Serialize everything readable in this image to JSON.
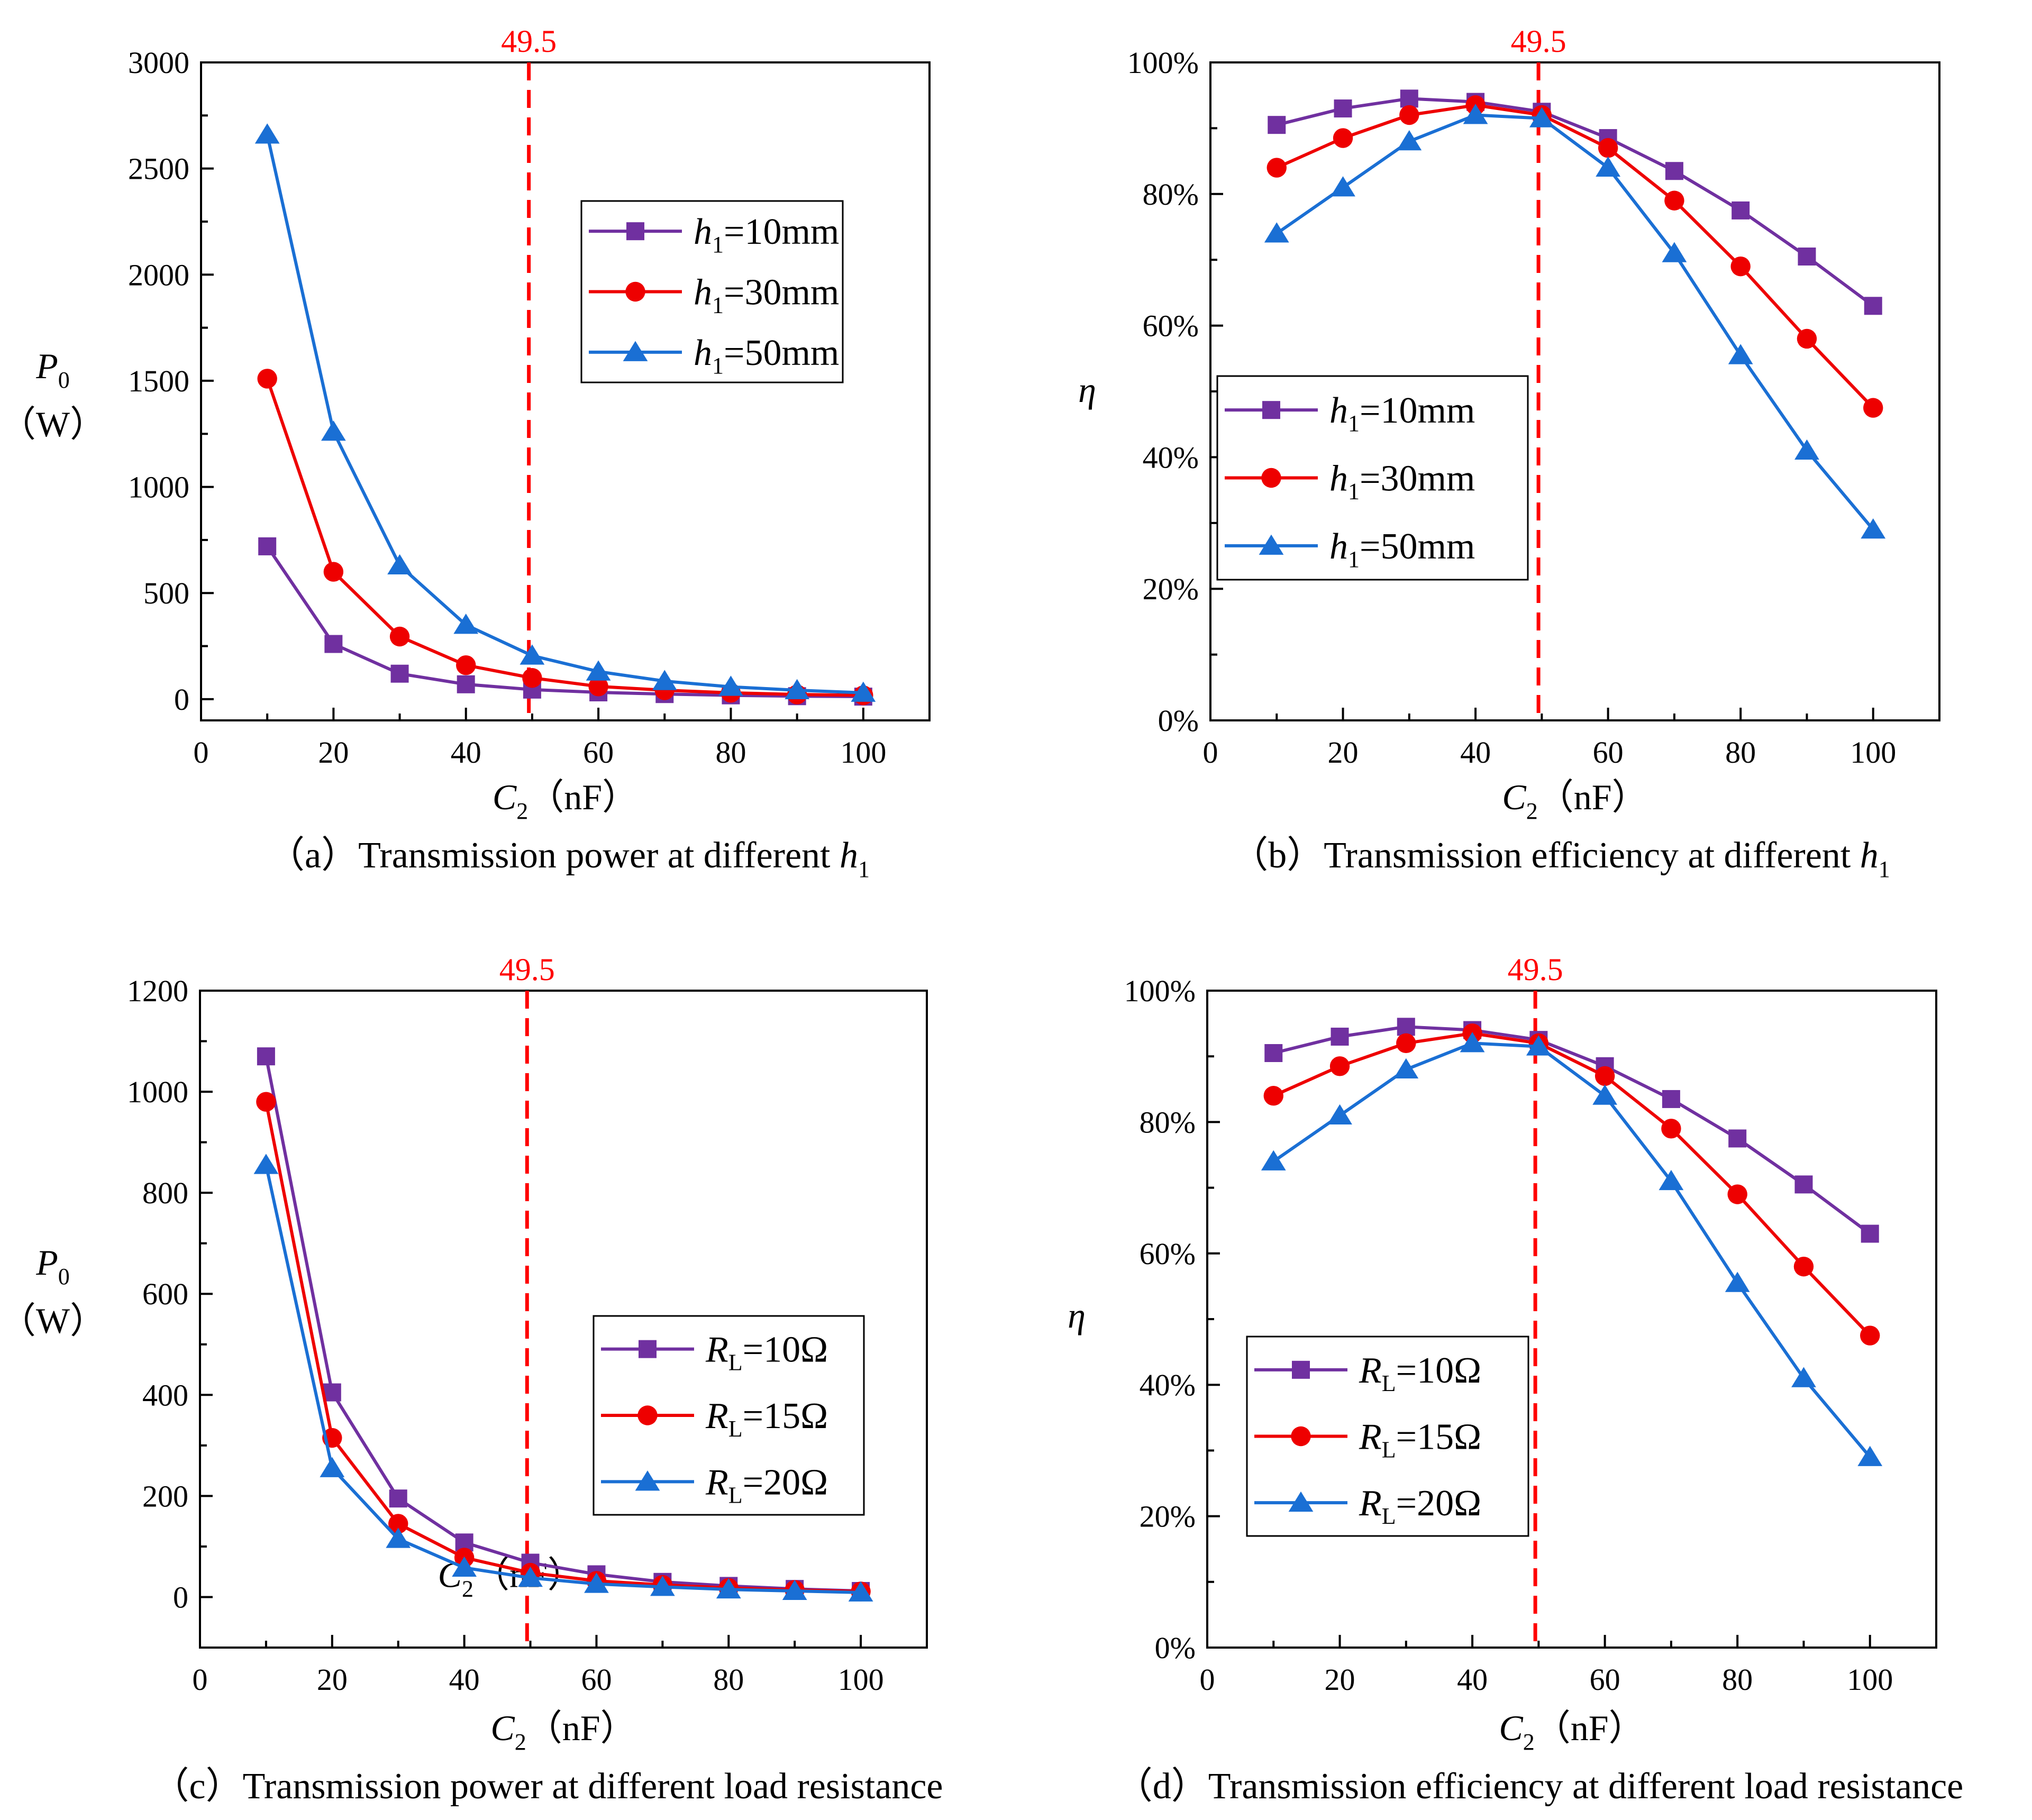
{
  "chart_data": [
    {
      "id": "a",
      "type": "line",
      "caption": "（a）Transmission power at different h1",
      "caption_prefix": "（a）Transmission power at different ",
      "caption_var": "h",
      "caption_sub": "1",
      "xlabel": "C2（nF）",
      "xlabel_var": "C",
      "xlabel_sub": "2",
      "xlabel_unit": "（nF）",
      "ylabel": "P0（W）",
      "ylabel_var": "P",
      "ylabel_sub": "0",
      "ylabel_unit": "（W）",
      "xlim": [
        0,
        110
      ],
      "ylim": [
        -100,
        3000
      ],
      "xticks": [
        0,
        20,
        40,
        60,
        80,
        100
      ],
      "yticks": [
        0,
        500,
        1000,
        1500,
        2000,
        2500,
        3000
      ],
      "ytick_labels": [
        "0",
        "500",
        "1000",
        "1500",
        "2000",
        "2500",
        "3000"
      ],
      "xtick_labels": [
        "0",
        "20",
        "40",
        "60",
        "80",
        "100"
      ],
      "ref_line": {
        "x": 49.5,
        "label": "49.5",
        "color": "#ff0000"
      },
      "legend": "upper-right-inner",
      "x": [
        10,
        20,
        30,
        40,
        50,
        60,
        70,
        80,
        90,
        100
      ],
      "series": [
        {
          "name": "h1=10mm",
          "var": "h",
          "sub": "1",
          "rest": "=10mm",
          "color": "#7030a0",
          "marker": "square",
          "values": [
            720,
            260,
            120,
            70,
            45,
            32,
            24,
            18,
            14,
            12
          ]
        },
        {
          "name": "h1=30mm",
          "var": "h",
          "sub": "1",
          "rest": "=30mm",
          "color": "#ee0000",
          "marker": "circle",
          "values": [
            1510,
            600,
            295,
            160,
            100,
            60,
            42,
            30,
            22,
            18
          ]
        },
        {
          "name": "h1=50mm",
          "var": "h",
          "sub": "1",
          "rest": "=50mm",
          "color": "#1a6fd4",
          "marker": "triangle",
          "values": [
            2660,
            1260,
            630,
            350,
            205,
            130,
            85,
            58,
            42,
            30
          ]
        }
      ]
    },
    {
      "id": "b",
      "type": "line",
      "caption": "（b）Transmission efficiency at different h1",
      "caption_prefix": "（b）Transmission efficiency at different ",
      "caption_var": "h",
      "caption_sub": "1",
      "xlabel": "C2（nF）",
      "xlabel_var": "C",
      "xlabel_sub": "2",
      "xlabel_unit": "（nF）",
      "ylabel": "η",
      "ylabel_var": "η",
      "ylabel_sub": "",
      "ylabel_unit": "",
      "xlim": [
        0,
        110
      ],
      "ylim": [
        0,
        100
      ],
      "xticks": [
        0,
        20,
        40,
        60,
        80,
        100
      ],
      "yticks": [
        0,
        20,
        40,
        60,
        80,
        100
      ],
      "ytick_labels": [
        "0%",
        "20%",
        "40%",
        "60%",
        "80%",
        "100%"
      ],
      "xtick_labels": [
        "0",
        "20",
        "40",
        "60",
        "80",
        "100"
      ],
      "ref_line": {
        "x": 49.5,
        "label": "49.5",
        "color": "#ff0000"
      },
      "legend": "center-left-inner",
      "x": [
        10,
        20,
        30,
        40,
        50,
        60,
        70,
        80,
        90,
        100
      ],
      "series": [
        {
          "name": "h1=10mm",
          "var": "h",
          "sub": "1",
          "rest": "=10mm",
          "color": "#7030a0",
          "marker": "square",
          "values": [
            90.5,
            93,
            94.5,
            94,
            92.5,
            88.5,
            83.5,
            77.5,
            70.5,
            63
          ]
        },
        {
          "name": "h1=30mm",
          "var": "h",
          "sub": "1",
          "rest": "=30mm",
          "color": "#ee0000",
          "marker": "circle",
          "values": [
            84,
            88.5,
            92,
            93.5,
            92,
            87,
            79,
            69,
            58,
            47.5
          ]
        },
        {
          "name": "h1=50mm",
          "var": "h",
          "sub": "1",
          "rest": "=50mm",
          "color": "#1a6fd4",
          "marker": "triangle",
          "values": [
            74,
            81,
            88,
            92,
            91.5,
            84,
            71,
            55.5,
            41,
            29
          ]
        }
      ]
    },
    {
      "id": "c",
      "type": "line",
      "caption": "（c）Transmission power at different load resistance",
      "caption_prefix": "（c）Transmission power at different load resistance",
      "caption_var": "",
      "caption_sub": "",
      "xlabel": "C2（nF）",
      "xlabel_var": "C",
      "xlabel_sub": "2",
      "xlabel_unit": "（nF）",
      "ylabel": "P0（W）",
      "ylabel_var": "P",
      "ylabel_sub": "0",
      "ylabel_unit": "（W）",
      "xlim": [
        0,
        110
      ],
      "ylim": [
        -100,
        1200
      ],
      "xticks": [
        0,
        20,
        40,
        60,
        80,
        100
      ],
      "yticks": [
        0,
        200,
        400,
        600,
        800,
        1000,
        1200
      ],
      "ytick_labels": [
        "0",
        "200",
        "400",
        "600",
        "800",
        "1000",
        "1200"
      ],
      "xtick_labels": [
        "0",
        "20",
        "40",
        "60",
        "80",
        "100"
      ],
      "ref_line": {
        "x": 49.5,
        "label": "49.5",
        "color": "#ff0000"
      },
      "annotation": {
        "text": "C2（nF）",
        "var": "C",
        "sub": "2",
        "unit": "（nF）",
        "x": 36,
        "y": 20
      },
      "legend": "lower-right-inner",
      "x": [
        10,
        20,
        30,
        40,
        50,
        60,
        70,
        80,
        90,
        100
      ],
      "series": [
        {
          "name": "RL=10Ω",
          "var": "R",
          "sub": "L",
          "rest": "=10Ω",
          "color": "#7030a0",
          "marker": "square",
          "values": [
            1070,
            405,
            195,
            108,
            68,
            45,
            30,
            22,
            16,
            12
          ]
        },
        {
          "name": "RL=15Ω",
          "var": "R",
          "sub": "L",
          "rest": "=15Ω",
          "color": "#ee0000",
          "marker": "circle",
          "values": [
            980,
            315,
            145,
            78,
            48,
            32,
            24,
            18,
            14,
            11
          ]
        },
        {
          "name": "RL=20Ω",
          "var": "R",
          "sub": "L",
          "rest": "=20Ω",
          "color": "#1a6fd4",
          "marker": "triangle",
          "values": [
            855,
            255,
            115,
            58,
            38,
            26,
            20,
            15,
            12,
            9
          ]
        }
      ]
    },
    {
      "id": "d",
      "type": "line",
      "caption": "（d）Transmission efficiency at different load resistance",
      "caption_prefix": "（d）Transmission efficiency at different load resistance",
      "caption_var": "",
      "caption_sub": "",
      "xlabel": "C2（nF）",
      "xlabel_var": "C",
      "xlabel_sub": "2",
      "xlabel_unit": "（nF）",
      "ylabel": "η",
      "ylabel_var": "η",
      "ylabel_sub": "",
      "ylabel_unit": "",
      "xlim": [
        0,
        110
      ],
      "ylim": [
        0,
        100
      ],
      "xticks": [
        0,
        20,
        40,
        60,
        80,
        100
      ],
      "yticks": [
        0,
        20,
        40,
        60,
        80,
        100
      ],
      "ytick_labels": [
        "0%",
        "20%",
        "40%",
        "60%",
        "80%",
        "100%"
      ],
      "xtick_labels": [
        "0",
        "20",
        "40",
        "60",
        "80",
        "100"
      ],
      "ref_line": {
        "x": 49.5,
        "label": "49.5",
        "color": "#ff0000"
      },
      "legend": "lower-center-inner",
      "x": [
        10,
        20,
        30,
        40,
        50,
        60,
        70,
        80,
        90,
        100
      ],
      "series": [
        {
          "name": "RL=10Ω",
          "var": "R",
          "sub": "L",
          "rest": "=10Ω",
          "color": "#7030a0",
          "marker": "square",
          "values": [
            90.5,
            93,
            94.5,
            94,
            92.5,
            88.5,
            83.5,
            77.5,
            70.5,
            63
          ]
        },
        {
          "name": "RL=15Ω",
          "var": "R",
          "sub": "L",
          "rest": "=15Ω",
          "color": "#ee0000",
          "marker": "circle",
          "values": [
            84,
            88.5,
            92,
            93.5,
            92,
            87,
            79,
            69,
            58,
            47.5
          ]
        },
        {
          "name": "RL=20Ω",
          "var": "R",
          "sub": "L",
          "rest": "=20Ω",
          "color": "#1a6fd4",
          "marker": "triangle",
          "values": [
            74,
            81,
            88,
            92,
            91.5,
            84,
            71,
            55.5,
            41,
            29
          ]
        }
      ]
    }
  ]
}
